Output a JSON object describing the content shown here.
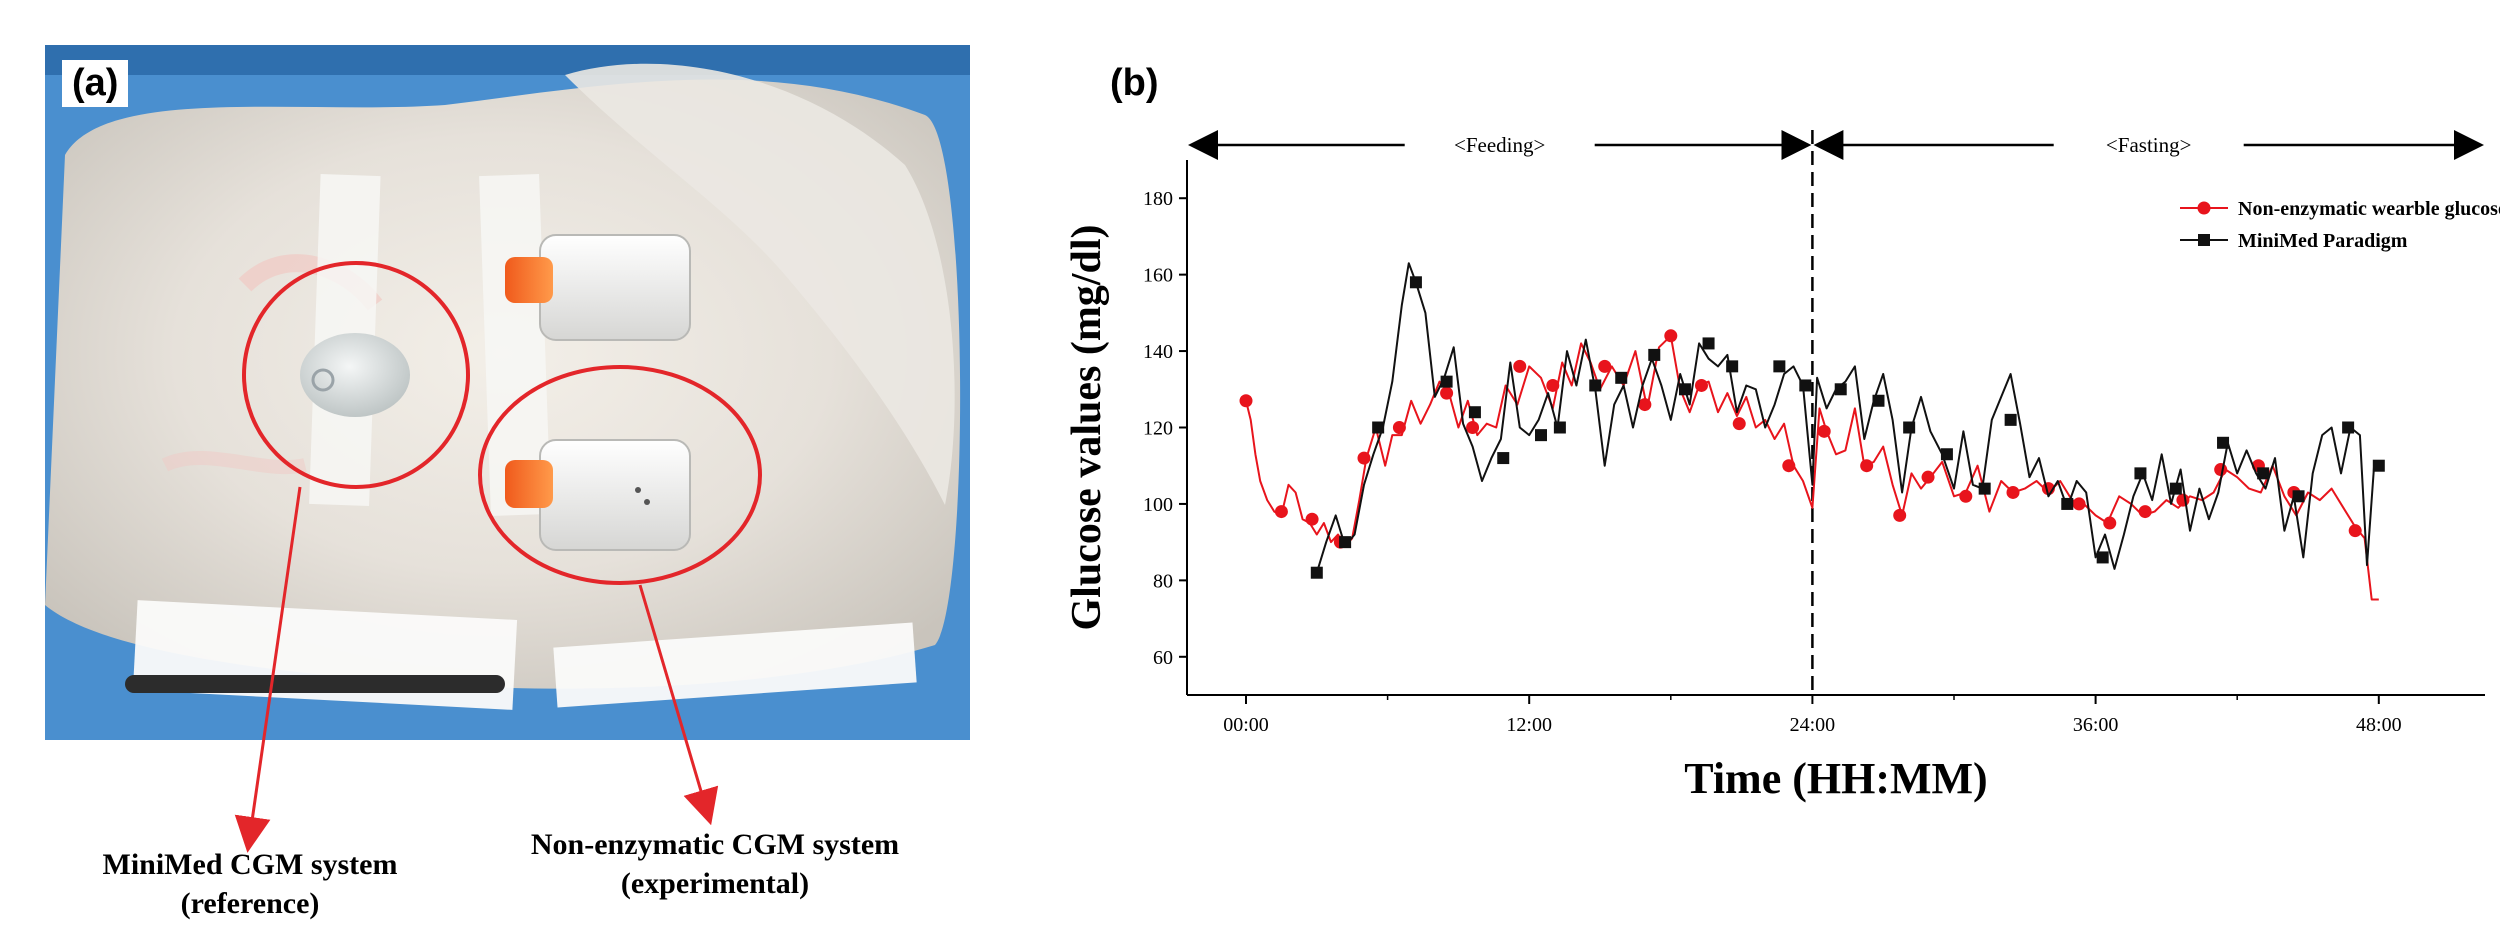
{
  "panels": {
    "a_label": "(a)",
    "b_label": "(b)"
  },
  "photo": {
    "callouts": [
      {
        "line1": "MiniMed CGM system",
        "line2": "(reference)"
      },
      {
        "line1": "Non-enzymatic CGM system",
        "line2": "(experimental)"
      }
    ]
  },
  "colors": {
    "series_red": "#e8141c",
    "series_black": "#111111",
    "callout_red": "#e3262a"
  },
  "chart_data": {
    "type": "line",
    "title": "",
    "xlabel": "Time (HH:MM)",
    "ylabel": "Glucose values (mg/dl)",
    "x_unit": "hours",
    "xlim": [
      -2.5,
      52.5
    ],
    "ylim": [
      50,
      190
    ],
    "xticks": [
      0,
      12,
      24,
      36,
      48
    ],
    "xtick_labels": [
      "00:00",
      "12:00",
      "24:00",
      "36:00",
      "48:00"
    ],
    "yticks": [
      60,
      80,
      100,
      120,
      140,
      160,
      180
    ],
    "ytick_labels": [
      "60",
      "80",
      "100",
      "120",
      "140",
      "160",
      "180"
    ],
    "divider_x": 24,
    "phases": [
      {
        "label": "<Feeding>",
        "from": -2.5,
        "to": 24
      },
      {
        "label": "<Fasting>",
        "from": 24,
        "to": 52.5
      }
    ],
    "legend_position": "top-right",
    "series": [
      {
        "name": "Non-enzymatic wearble glucose sensor",
        "marker": "circle",
        "color": "#e8141c",
        "line": [
          [
            0,
            127
          ],
          [
            0.2,
            122
          ],
          [
            0.4,
            113
          ],
          [
            0.6,
            106
          ],
          [
            0.9,
            101
          ],
          [
            1.2,
            98
          ],
          [
            1.5,
            97
          ],
          [
            1.8,
            105
          ],
          [
            2.1,
            103
          ],
          [
            2.4,
            96
          ],
          [
            2.7,
            95
          ],
          [
            3.0,
            92
          ],
          [
            3.3,
            95
          ],
          [
            3.6,
            90
          ],
          [
            3.9,
            92
          ],
          [
            4.2,
            89
          ],
          [
            4.5,
            91
          ],
          [
            4.8,
            101
          ],
          [
            5.1,
            112
          ],
          [
            5.5,
            120
          ],
          [
            5.9,
            110
          ],
          [
            6.2,
            118
          ],
          [
            6.6,
            118
          ],
          [
            7.0,
            127
          ],
          [
            7.4,
            121
          ],
          [
            7.8,
            126
          ],
          [
            8.2,
            132
          ],
          [
            8.6,
            129
          ],
          [
            9.0,
            120
          ],
          [
            9.4,
            127
          ],
          [
            9.8,
            118
          ],
          [
            10.2,
            121
          ],
          [
            10.6,
            120
          ],
          [
            11.0,
            131
          ],
          [
            11.5,
            126
          ],
          [
            12.0,
            136
          ],
          [
            12.5,
            133
          ],
          [
            13.0,
            125
          ],
          [
            13.4,
            137
          ],
          [
            13.8,
            131
          ],
          [
            14.2,
            142
          ],
          [
            14.6,
            137
          ],
          [
            15.0,
            130
          ],
          [
            15.5,
            136
          ],
          [
            16.0,
            131
          ],
          [
            16.5,
            140
          ],
          [
            17.0,
            125
          ],
          [
            17.5,
            141
          ],
          [
            18.0,
            144
          ],
          [
            18.4,
            130
          ],
          [
            18.8,
            124
          ],
          [
            19.2,
            131
          ],
          [
            19.6,
            132
          ],
          [
            20.0,
            124
          ],
          [
            20.4,
            129
          ],
          [
            20.8,
            123
          ],
          [
            21.2,
            128
          ],
          [
            21.6,
            120
          ],
          [
            22.0,
            122
          ],
          [
            22.4,
            117
          ],
          [
            22.8,
            121
          ],
          [
            23.2,
            110
          ],
          [
            23.6,
            106
          ],
          [
            24.0,
            99
          ],
          [
            24.3,
            125
          ],
          [
            24.6,
            119
          ],
          [
            25.0,
            113
          ],
          [
            25.4,
            114
          ],
          [
            25.8,
            125
          ],
          [
            26.2,
            110
          ],
          [
            26.6,
            111
          ],
          [
            27.0,
            115
          ],
          [
            27.4,
            105
          ],
          [
            27.8,
            97
          ],
          [
            28.2,
            108
          ],
          [
            28.6,
            104
          ],
          [
            29.0,
            107
          ],
          [
            29.5,
            111
          ],
          [
            30.0,
            102
          ],
          [
            30.5,
            103
          ],
          [
            31.0,
            110
          ],
          [
            31.5,
            98
          ],
          [
            32.0,
            106
          ],
          [
            32.5,
            103
          ],
          [
            33.0,
            104
          ],
          [
            33.5,
            106
          ],
          [
            34.0,
            103
          ],
          [
            34.5,
            106
          ],
          [
            35.0,
            101
          ],
          [
            35.5,
            100
          ],
          [
            36.0,
            97
          ],
          [
            36.5,
            95
          ],
          [
            37.0,
            102
          ],
          [
            37.5,
            100
          ],
          [
            38.0,
            97
          ],
          [
            38.5,
            98
          ],
          [
            39.0,
            101
          ],
          [
            39.5,
            99
          ],
          [
            40.0,
            102
          ],
          [
            40.5,
            101
          ],
          [
            41.0,
            103
          ],
          [
            41.5,
            109
          ],
          [
            42.0,
            107
          ],
          [
            42.5,
            104
          ],
          [
            43.0,
            103
          ],
          [
            43.5,
            110
          ],
          [
            44.0,
            102
          ],
          [
            44.5,
            97
          ],
          [
            45.0,
            103
          ],
          [
            45.5,
            101
          ],
          [
            46.0,
            104
          ],
          [
            46.5,
            99
          ],
          [
            47.0,
            94
          ],
          [
            47.4,
            91
          ],
          [
            47.7,
            75
          ],
          [
            48.0,
            75
          ]
        ],
        "markers": [
          [
            0,
            127
          ],
          [
            1.5,
            98
          ],
          [
            2.8,
            96
          ],
          [
            4.0,
            90
          ],
          [
            5.0,
            112
          ],
          [
            6.5,
            120
          ],
          [
            8.5,
            129
          ],
          [
            9.6,
            120
          ],
          [
            11.6,
            136
          ],
          [
            13.0,
            131
          ],
          [
            15.2,
            136
          ],
          [
            16.9,
            126
          ],
          [
            18.0,
            144
          ],
          [
            19.3,
            131
          ],
          [
            20.9,
            121
          ],
          [
            23.0,
            110
          ],
          [
            24.5,
            119
          ],
          [
            26.3,
            110
          ],
          [
            27.7,
            97
          ],
          [
            28.9,
            107
          ],
          [
            30.5,
            102
          ],
          [
            32.5,
            103
          ],
          [
            34.0,
            104
          ],
          [
            35.3,
            100
          ],
          [
            36.6,
            95
          ],
          [
            38.1,
            98
          ],
          [
            39.7,
            101
          ],
          [
            41.3,
            109
          ],
          [
            42.9,
            110
          ],
          [
            44.4,
            103
          ],
          [
            47.0,
            93
          ]
        ]
      },
      {
        "name": "MiniMed Paradigm",
        "marker": "square",
        "color": "#111111",
        "line": [
          [
            3.0,
            82
          ],
          [
            3.4,
            90
          ],
          [
            3.8,
            97
          ],
          [
            4.2,
            89
          ],
          [
            4.6,
            92
          ],
          [
            5.0,
            105
          ],
          [
            5.4,
            113
          ],
          [
            5.8,
            120
          ],
          [
            6.2,
            132
          ],
          [
            6.6,
            152
          ],
          [
            6.9,
            163
          ],
          [
            7.2,
            158
          ],
          [
            7.6,
            150
          ],
          [
            8.0,
            128
          ],
          [
            8.4,
            133
          ],
          [
            8.8,
            141
          ],
          [
            9.2,
            121
          ],
          [
            9.6,
            115
          ],
          [
            10.0,
            106
          ],
          [
            10.4,
            112
          ],
          [
            10.8,
            117
          ],
          [
            11.2,
            137
          ],
          [
            11.6,
            120
          ],
          [
            12.0,
            118
          ],
          [
            12.4,
            122
          ],
          [
            12.8,
            129
          ],
          [
            13.2,
            120
          ],
          [
            13.6,
            140
          ],
          [
            14.0,
            131
          ],
          [
            14.4,
            143
          ],
          [
            14.8,
            130
          ],
          [
            15.2,
            110
          ],
          [
            15.6,
            126
          ],
          [
            16.0,
            131
          ],
          [
            16.4,
            120
          ],
          [
            16.8,
            131
          ],
          [
            17.2,
            138
          ],
          [
            17.6,
            131
          ],
          [
            18.0,
            122
          ],
          [
            18.4,
            134
          ],
          [
            18.8,
            126
          ],
          [
            19.2,
            142
          ],
          [
            19.6,
            138
          ],
          [
            20.0,
            136
          ],
          [
            20.4,
            139
          ],
          [
            20.8,
            124
          ],
          [
            21.2,
            131
          ],
          [
            21.6,
            130
          ],
          [
            22.0,
            120
          ],
          [
            22.4,
            126
          ],
          [
            22.8,
            134
          ],
          [
            23.2,
            136
          ],
          [
            23.6,
            131
          ],
          [
            24.0,
            105
          ],
          [
            24.2,
            133
          ],
          [
            24.6,
            125
          ],
          [
            25.0,
            130
          ],
          [
            25.4,
            132
          ],
          [
            25.8,
            136
          ],
          [
            26.2,
            117
          ],
          [
            26.6,
            127
          ],
          [
            27.0,
            134
          ],
          [
            27.4,
            122
          ],
          [
            27.8,
            103
          ],
          [
            28.2,
            120
          ],
          [
            28.6,
            128
          ],
          [
            29.0,
            119
          ],
          [
            29.5,
            113
          ],
          [
            30.0,
            104
          ],
          [
            30.4,
            119
          ],
          [
            30.8,
            105
          ],
          [
            31.2,
            104
          ],
          [
            31.6,
            122
          ],
          [
            32.0,
            128
          ],
          [
            32.4,
            134
          ],
          [
            32.8,
            121
          ],
          [
            33.2,
            107
          ],
          [
            33.6,
            112
          ],
          [
            34.0,
            102
          ],
          [
            34.4,
            106
          ],
          [
            34.8,
            99
          ],
          [
            35.2,
            106
          ],
          [
            35.6,
            103
          ],
          [
            36.0,
            86
          ],
          [
            36.4,
            92
          ],
          [
            36.8,
            83
          ],
          [
            37.2,
            92
          ],
          [
            37.6,
            102
          ],
          [
            38.0,
            108
          ],
          [
            38.4,
            101
          ],
          [
            38.8,
            113
          ],
          [
            39.2,
            100
          ],
          [
            39.6,
            109
          ],
          [
            40.0,
            93
          ],
          [
            40.4,
            104
          ],
          [
            40.8,
            96
          ],
          [
            41.2,
            103
          ],
          [
            41.6,
            116
          ],
          [
            42.0,
            108
          ],
          [
            42.4,
            114
          ],
          [
            42.8,
            108
          ],
          [
            43.2,
            104
          ],
          [
            43.6,
            112
          ],
          [
            44.0,
            93
          ],
          [
            44.4,
            102
          ],
          [
            44.8,
            86
          ],
          [
            45.2,
            108
          ],
          [
            45.6,
            118
          ],
          [
            46.0,
            120
          ],
          [
            46.4,
            108
          ],
          [
            46.8,
            120
          ],
          [
            47.2,
            118
          ],
          [
            47.5,
            84
          ],
          [
            47.8,
            110
          ],
          [
            48.0,
            111
          ]
        ],
        "markers": [
          [
            3.0,
            82
          ],
          [
            4.2,
            90
          ],
          [
            5.6,
            120
          ],
          [
            7.2,
            158
          ],
          [
            8.5,
            132
          ],
          [
            9.7,
            124
          ],
          [
            10.9,
            112
          ],
          [
            12.5,
            118
          ],
          [
            13.3,
            120
          ],
          [
            14.8,
            131
          ],
          [
            15.9,
            133
          ],
          [
            17.3,
            139
          ],
          [
            18.6,
            130
          ],
          [
            19.6,
            142
          ],
          [
            20.6,
            136
          ],
          [
            22.6,
            136
          ],
          [
            23.7,
            131
          ],
          [
            25.2,
            130
          ],
          [
            26.8,
            127
          ],
          [
            28.1,
            120
          ],
          [
            29.7,
            113
          ],
          [
            31.3,
            104
          ],
          [
            32.4,
            122
          ],
          [
            34.8,
            100
          ],
          [
            36.3,
            86
          ],
          [
            37.9,
            108
          ],
          [
            39.4,
            104
          ],
          [
            41.4,
            116
          ],
          [
            43.1,
            108
          ],
          [
            44.6,
            102
          ],
          [
            46.7,
            120
          ],
          [
            48.0,
            110
          ]
        ]
      }
    ]
  }
}
